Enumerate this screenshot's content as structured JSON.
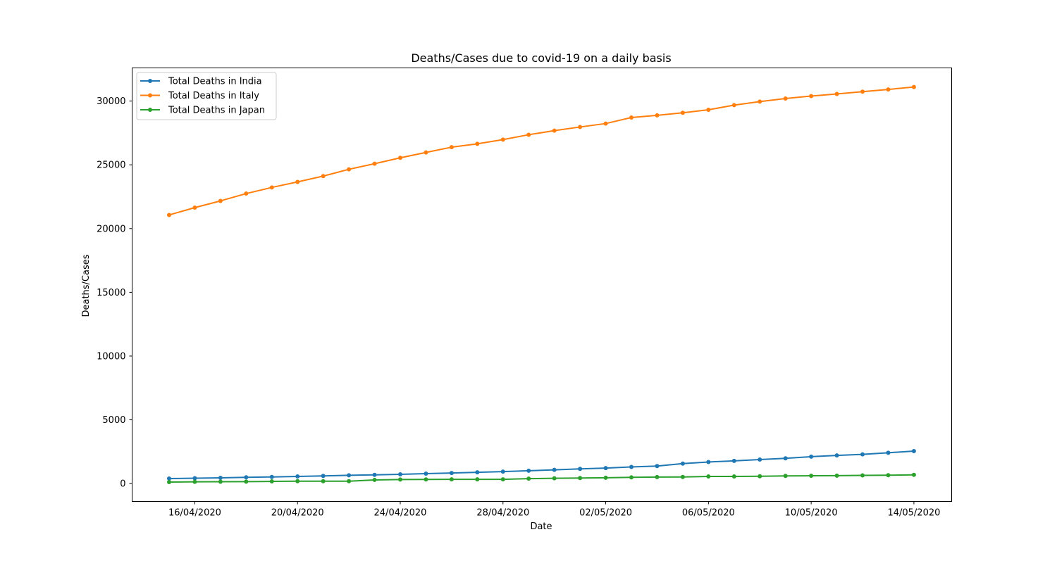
{
  "chart_data": {
    "type": "line",
    "title": "Deaths/Cases due to covid-19 on a daily basis",
    "xlabel": "Date",
    "ylabel": "Deaths/Cases",
    "x": [
      "15/04/2020",
      "16/04/2020",
      "17/04/2020",
      "18/04/2020",
      "19/04/2020",
      "20/04/2020",
      "21/04/2020",
      "22/04/2020",
      "23/04/2020",
      "24/04/2020",
      "25/04/2020",
      "26/04/2020",
      "27/04/2020",
      "28/04/2020",
      "29/04/2020",
      "30/04/2020",
      "01/05/2020",
      "02/05/2020",
      "03/05/2020",
      "04/05/2020",
      "05/05/2020",
      "06/05/2020",
      "07/05/2020",
      "08/05/2020",
      "09/05/2020",
      "10/05/2020",
      "11/05/2020",
      "12/05/2020",
      "13/05/2020",
      "14/05/2020"
    ],
    "xticks": [
      "16/04/2020",
      "20/04/2020",
      "24/04/2020",
      "28/04/2020",
      "02/05/2020",
      "06/05/2020",
      "10/05/2020",
      "14/05/2020"
    ],
    "yticks": [
      0,
      5000,
      10000,
      15000,
      20000,
      25000,
      30000
    ],
    "ylim": [
      -1400,
      32600
    ],
    "xlim": [
      "14/04/2020 (approx.)",
      "15/05/2020 (approx.)"
    ],
    "grid": false,
    "legend_position": "top-left",
    "series": [
      {
        "name": "Total Deaths in India",
        "color": "#1f77b4",
        "values": [
          392,
          420,
          452,
          488,
          521,
          559,
          603,
          652,
          686,
          723,
          779,
          826,
          886,
          937,
          1008,
          1075,
          1152,
          1218,
          1306,
          1373,
          1568,
          1694,
          1783,
          1886,
          1981,
          2109,
          2206,
          2293,
          2415,
          2549
        ]
      },
      {
        "name": "Total Deaths in Italy",
        "color": "#ff7f0e",
        "values": [
          21067,
          21645,
          22170,
          22745,
          23227,
          23660,
          24114,
          24648,
          25085,
          25549,
          25969,
          26384,
          26644,
          26977,
          27359,
          27682,
          27967,
          28236,
          28710,
          28884,
          29079,
          29315,
          29684,
          29958,
          30201,
          30395,
          30560,
          30739,
          30911,
          31106
        ]
      },
      {
        "name": "Total Deaths in Japan",
        "color": "#2ca02c",
        "values": [
          119,
          136,
          148,
          154,
          171,
          186,
          186,
          186,
          287,
          317,
          328,
          334,
          334,
          334,
          385,
          415,
          432,
          455,
          487,
          510,
          521,
          556,
          556,
          576,
          600,
          613,
          621,
          643,
          657,
          687
        ]
      }
    ]
  }
}
